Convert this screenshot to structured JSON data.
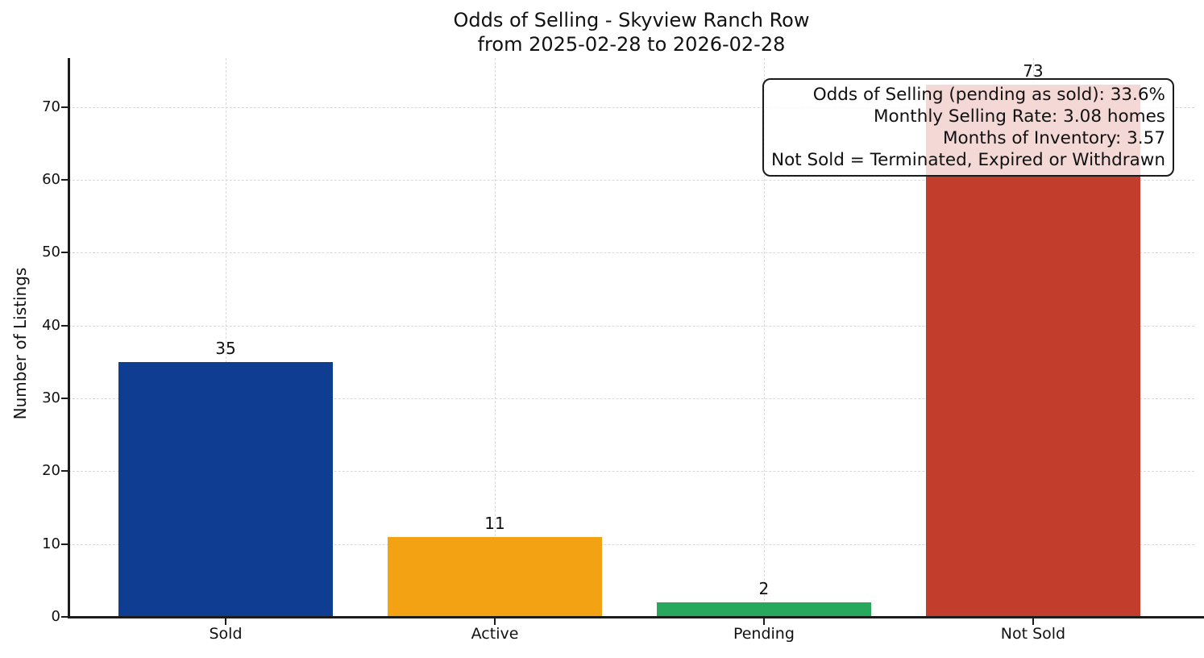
{
  "figure": {
    "title_line1": "Odds of Selling - Skyview Ranch Row",
    "title_line2": "from 2025-02-28 to 2026-02-28"
  },
  "chart_data": {
    "type": "bar",
    "title": "Odds of Selling - Skyview Ranch Row\nfrom 2025-02-28 to 2026-02-28",
    "categories": [
      "Sold",
      "Active",
      "Pending",
      "Not Sold"
    ],
    "values": [
      35,
      11,
      2,
      73
    ],
    "bar_colors": [
      "#0e3d91",
      "#f2a213",
      "#28a85c",
      "#c33d2d"
    ],
    "value_labels": [
      "35",
      "11",
      "2",
      "73"
    ],
    "xlabel": "",
    "ylabel": "Number of Listings",
    "yticks": [
      0,
      10,
      20,
      30,
      40,
      50,
      60,
      70
    ],
    "ylim": [
      0,
      76.7
    ],
    "grid": {
      "visible": true,
      "style": "dashed",
      "axes": "both"
    },
    "legend_position": "none",
    "annotation": {
      "position": "top-right",
      "text_align": "right",
      "lines": [
        "Odds of Selling (pending as sold): 33.6%",
        "Monthly Selling Rate: 3.08 homes",
        "Months of Inventory: 3.57",
        "Not Sold = Terminated, Expired or Withdrawn"
      ]
    }
  },
  "colors": {
    "background": "#ffffff",
    "spine": "#1c1c1c",
    "grid": "#d9d9d9",
    "text": "#111111",
    "annotation_bg": "rgba(255,255,255,0.8)",
    "annotation_border": "#1b1b1b"
  }
}
